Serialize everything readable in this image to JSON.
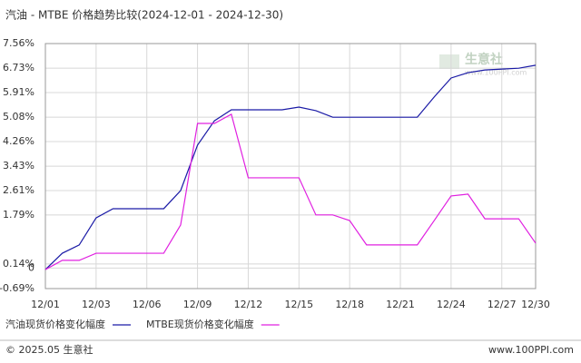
{
  "chart_data": {
    "type": "line",
    "title": "汽油 - MTBE 价格趋势比较(2024-12-01 - 2024-12-30)",
    "categories": [
      "12/01",
      null,
      null,
      "12/03",
      null,
      null,
      "12/06",
      null,
      null,
      "12/09",
      null,
      null,
      "12/12",
      null,
      null,
      "12/15",
      null,
      null,
      "12/18",
      null,
      null,
      "12/21",
      null,
      null,
      "12/24",
      null,
      null,
      "12/27",
      null,
      "12/30"
    ],
    "series": [
      {
        "name": "汽油现货价格变化幅度",
        "color": "#1a1aa6",
        "values": [
          -0.05,
          0.5,
          0.78,
          1.69,
          2.0,
          2.0,
          2.0,
          2.0,
          2.61,
          4.14,
          4.96,
          5.33,
          5.33,
          5.33,
          5.33,
          5.42,
          5.3,
          5.08,
          5.08,
          5.08,
          5.08,
          5.08,
          5.08,
          5.76,
          6.4,
          6.58,
          6.67,
          6.7,
          6.73,
          6.83
        ]
      },
      {
        "name": "MTBE现货价格变化幅度",
        "color": "#e020e0",
        "values": [
          -0.05,
          0.26,
          0.26,
          0.5,
          0.5,
          0.5,
          0.5,
          0.5,
          1.45,
          4.87,
          4.87,
          5.18,
          3.04,
          3.04,
          3.04,
          3.04,
          1.79,
          1.79,
          1.6,
          0.78,
          0.78,
          0.78,
          0.78,
          1.6,
          2.43,
          2.49,
          1.66,
          1.66,
          1.66,
          0.84
        ]
      }
    ],
    "ylim": [
      -0.69,
      7.56
    ],
    "yticks": [
      {
        "value": 7.56,
        "label": "7.56%"
      },
      {
        "value": 6.73,
        "label": "6.73%"
      },
      {
        "value": 5.91,
        "label": "5.91%"
      },
      {
        "value": 5.08,
        "label": "5.08%"
      },
      {
        "value": 4.26,
        "label": "4.26%"
      },
      {
        "value": 3.43,
        "label": "3.43%"
      },
      {
        "value": 2.61,
        "label": "2.61%"
      },
      {
        "value": 1.79,
        "label": "1.79%"
      },
      {
        "value": 0.14,
        "label": "0.14%"
      },
      0,
      {
        "value": -0.69,
        "label": "-0.69%"
      }
    ],
    "grid": true
  },
  "watermark": {
    "name": "生意社",
    "url": "www.100PPI.com"
  },
  "footer": {
    "copyright": "© 2025.05 生意社",
    "url": "www.100PPI.com"
  }
}
